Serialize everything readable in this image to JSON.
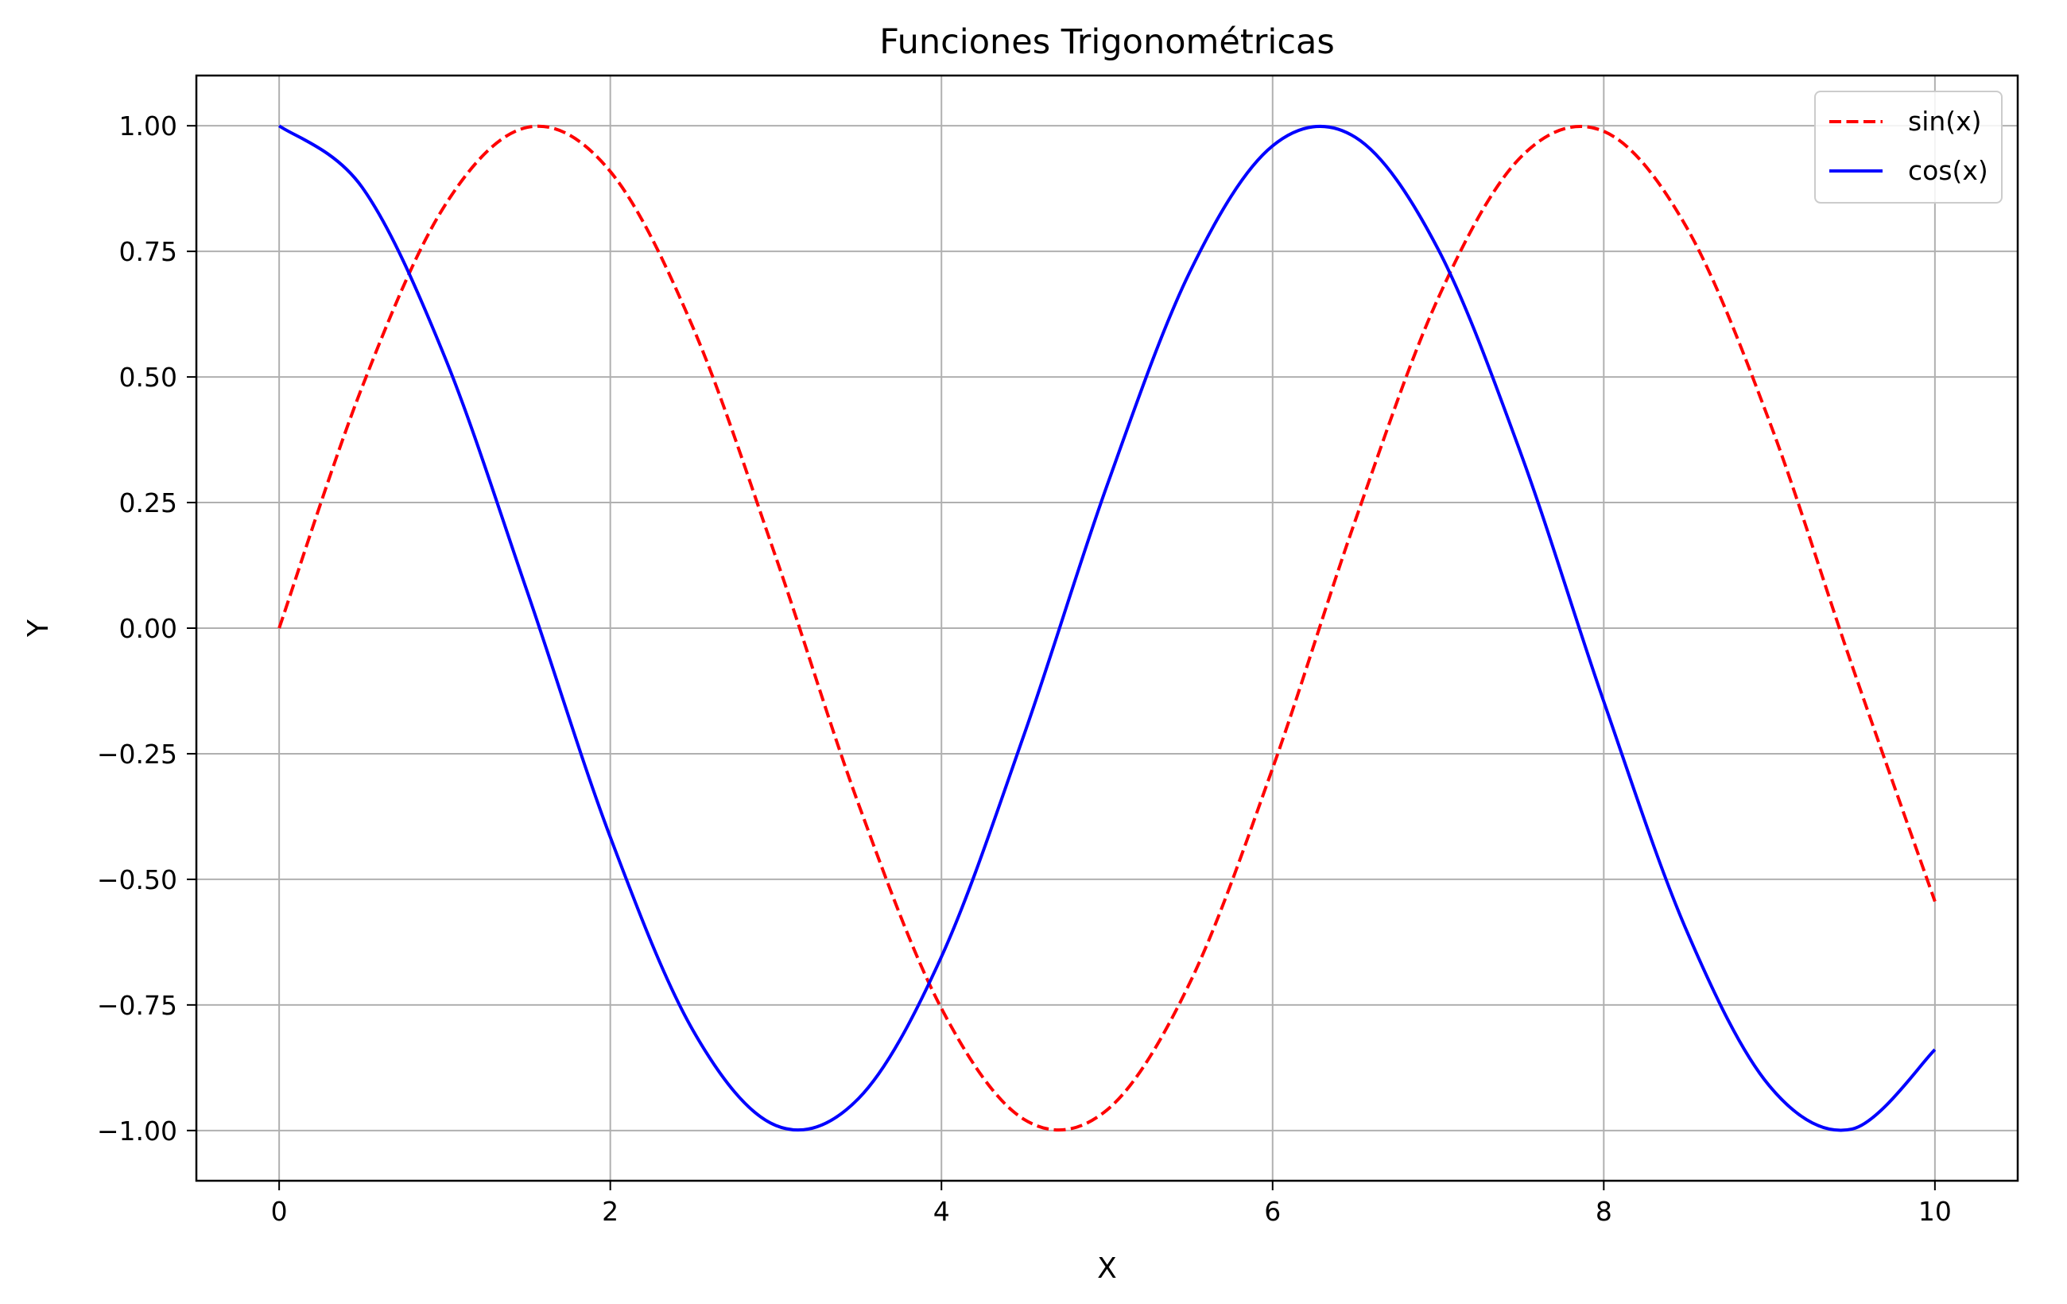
{
  "chart_data": {
    "type": "line",
    "title": "Funciones Trigonométricas",
    "xlabel": "X",
    "ylabel": "Y",
    "xlim": [
      -0.5,
      10.5
    ],
    "ylim": [
      -1.1,
      1.1
    ],
    "xticks": [
      0,
      2,
      4,
      6,
      8,
      10
    ],
    "xtick_labels": [
      "0",
      "2",
      "4",
      "6",
      "8",
      "10"
    ],
    "yticks": [
      1.0,
      0.75,
      0.5,
      0.25,
      0.0,
      -0.25,
      -0.5,
      -0.75,
      -1.0
    ],
    "ytick_labels": [
      "1.00",
      "0.75",
      "0.50",
      "0.25",
      "0.00",
      "−0.25",
      "−0.50",
      "−0.75",
      "−1.00"
    ],
    "grid": true,
    "legend_position": "top-right",
    "x": [
      0,
      0.5,
      1,
      1.5,
      2,
      2.5,
      3,
      3.5,
      4,
      4.5,
      5,
      5.5,
      6,
      6.5,
      7,
      7.5,
      8,
      8.5,
      9,
      9.5,
      10
    ],
    "series": [
      {
        "name": "sin(x)",
        "color": "#ff0000",
        "style": "dashed",
        "values": [
          0.0,
          0.479,
          0.841,
          0.997,
          0.909,
          0.598,
          0.141,
          -0.351,
          -0.757,
          -0.978,
          -0.959,
          -0.706,
          -0.279,
          0.215,
          0.657,
          0.938,
          0.989,
          0.798,
          0.412,
          -0.075,
          -0.544
        ]
      },
      {
        "name": "cos(x)",
        "color": "#0000ff",
        "style": "solid",
        "values": [
          1.0,
          0.878,
          0.54,
          0.071,
          -0.416,
          -0.801,
          -0.99,
          -0.936,
          -0.654,
          -0.211,
          0.284,
          0.709,
          0.96,
          0.977,
          0.754,
          0.347,
          -0.146,
          -0.602,
          -0.911,
          -0.997,
          -0.839
        ]
      }
    ]
  }
}
